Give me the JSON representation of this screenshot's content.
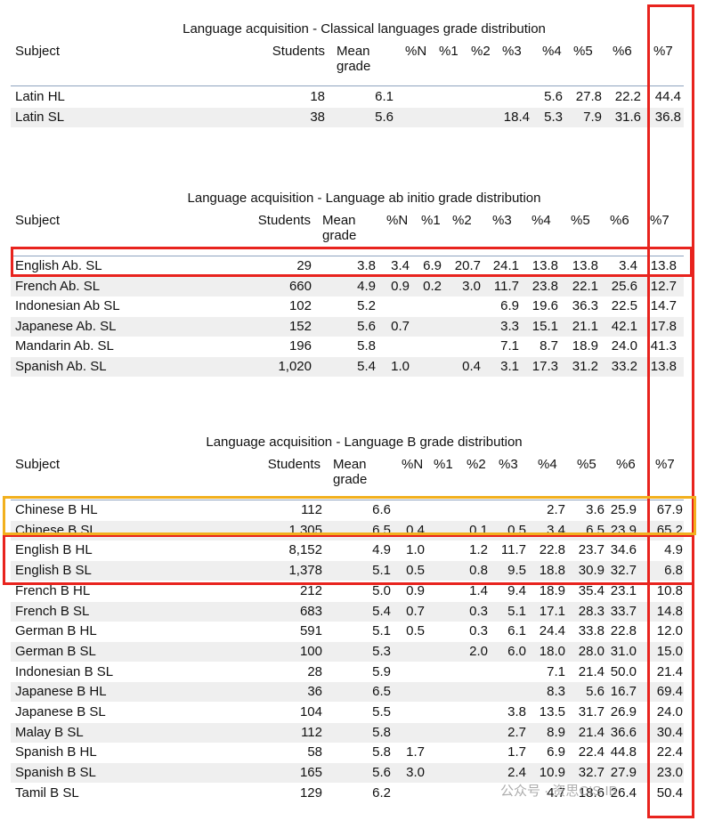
{
  "tables": [
    {
      "title": "Language acquisition - Classical languages grade distribution",
      "header": [
        "Subject",
        "Students",
        "Mean grade",
        "%N",
        "%1",
        "%2",
        "%3",
        "%4",
        "%5",
        "%6",
        "%7"
      ],
      "rows": [
        [
          "Latin HL",
          "18",
          "6.1",
          null,
          null,
          null,
          null,
          "5.6",
          "27.8",
          "22.2",
          "44.4"
        ],
        [
          "Latin SL",
          "38",
          "5.6",
          null,
          null,
          null,
          "18.4",
          "5.3",
          "7.9",
          "31.6",
          "36.8"
        ]
      ]
    },
    {
      "title": "Language acquisition - Language ab initio grade distribution",
      "header": [
        "Subject",
        "Students",
        "Mean grade",
        "%N",
        "%1",
        "%2",
        "%3",
        "%4",
        "%5",
        "%6",
        "%7"
      ],
      "rows": [
        [
          "English Ab. SL",
          "29",
          "3.8",
          "3.4",
          "6.9",
          "20.7",
          "24.1",
          "13.8",
          "13.8",
          "3.4",
          "13.8"
        ],
        [
          "French Ab. SL",
          "660",
          "4.9",
          "0.9",
          "0.2",
          "3.0",
          "11.7",
          "23.8",
          "22.1",
          "25.6",
          "12.7"
        ],
        [
          "Indonesian Ab SL",
          "102",
          "5.2",
          null,
          null,
          null,
          "6.9",
          "19.6",
          "36.3",
          "22.5",
          "14.7"
        ],
        [
          "Japanese Ab. SL",
          "152",
          "5.6",
          "0.7",
          null,
          null,
          "3.3",
          "15.1",
          "21.1",
          "42.1",
          "17.8"
        ],
        [
          "Mandarin Ab. SL",
          "196",
          "5.8",
          null,
          null,
          null,
          "7.1",
          "8.7",
          "18.9",
          "24.0",
          "41.3"
        ],
        [
          "Spanish Ab. SL",
          "1,020",
          "5.4",
          "1.0",
          null,
          "0.4",
          "3.1",
          "17.3",
          "31.2",
          "33.2",
          "13.8"
        ]
      ]
    },
    {
      "title": "Language acquisition - Language B grade distribution",
      "header": [
        "Subject",
        "Students",
        "Mean grade",
        "%N",
        "%1",
        "%2",
        "%3",
        "%4",
        "%5",
        "%6",
        "%7"
      ],
      "rows": [
        [
          "Chinese B HL",
          "112",
          "6.6",
          null,
          null,
          null,
          null,
          "2.7",
          "3.6",
          "25.9",
          "67.9"
        ],
        [
          "Chinese B SL",
          "1,305",
          "6.5",
          "0.4",
          null,
          "0.1",
          "0.5",
          "3.4",
          "6.5",
          "23.9",
          "65.2"
        ],
        [
          "English B HL",
          "8,152",
          "4.9",
          "1.0",
          null,
          "1.2",
          "11.7",
          "22.8",
          "23.7",
          "34.6",
          "4.9"
        ],
        [
          "English B SL",
          "1,378",
          "5.1",
          "0.5",
          null,
          "0.8",
          "9.5",
          "18.8",
          "30.9",
          "32.7",
          "6.8"
        ],
        [
          "French B HL",
          "212",
          "5.0",
          "0.9",
          null,
          "1.4",
          "9.4",
          "18.9",
          "35.4",
          "23.1",
          "10.8"
        ],
        [
          "French B SL",
          "683",
          "5.4",
          "0.7",
          null,
          "0.3",
          "5.1",
          "17.1",
          "28.3",
          "33.7",
          "14.8"
        ],
        [
          "German B HL",
          "591",
          "5.1",
          "0.5",
          null,
          "0.3",
          "6.1",
          "24.4",
          "33.8",
          "22.8",
          "12.0"
        ],
        [
          "German B SL",
          "100",
          "5.3",
          null,
          null,
          "2.0",
          "6.0",
          "18.0",
          "28.0",
          "31.0",
          "15.0"
        ],
        [
          "Indonesian B SL",
          "28",
          "5.9",
          null,
          null,
          null,
          null,
          "7.1",
          "21.4",
          "50.0",
          "21.4"
        ],
        [
          "Japanese B HL",
          "36",
          "6.5",
          null,
          null,
          null,
          null,
          "8.3",
          "5.6",
          "16.7",
          "69.4"
        ],
        [
          "Japanese B SL",
          "104",
          "5.5",
          null,
          null,
          null,
          "3.8",
          "13.5",
          "31.7",
          "26.9",
          "24.0"
        ],
        [
          "Malay B SL",
          "112",
          "5.8",
          null,
          null,
          null,
          "2.7",
          "8.9",
          "21.4",
          "36.6",
          "30.4"
        ],
        [
          "Spanish B HL",
          "58",
          "5.8",
          "1.7",
          null,
          null,
          "1.7",
          "6.9",
          "22.4",
          "44.8",
          "22.4"
        ],
        [
          "Spanish B SL",
          "165",
          "5.6",
          "3.0",
          null,
          null,
          "2.4",
          "10.9",
          "32.7",
          "27.9",
          "23.0"
        ],
        [
          "Tamil B SL",
          "129",
          "6.2",
          null,
          null,
          null,
          null,
          "4.7",
          "18.6",
          "26.4",
          "50.4"
        ]
      ]
    }
  ],
  "watermark": "公众号 · 资思CIS IB"
}
